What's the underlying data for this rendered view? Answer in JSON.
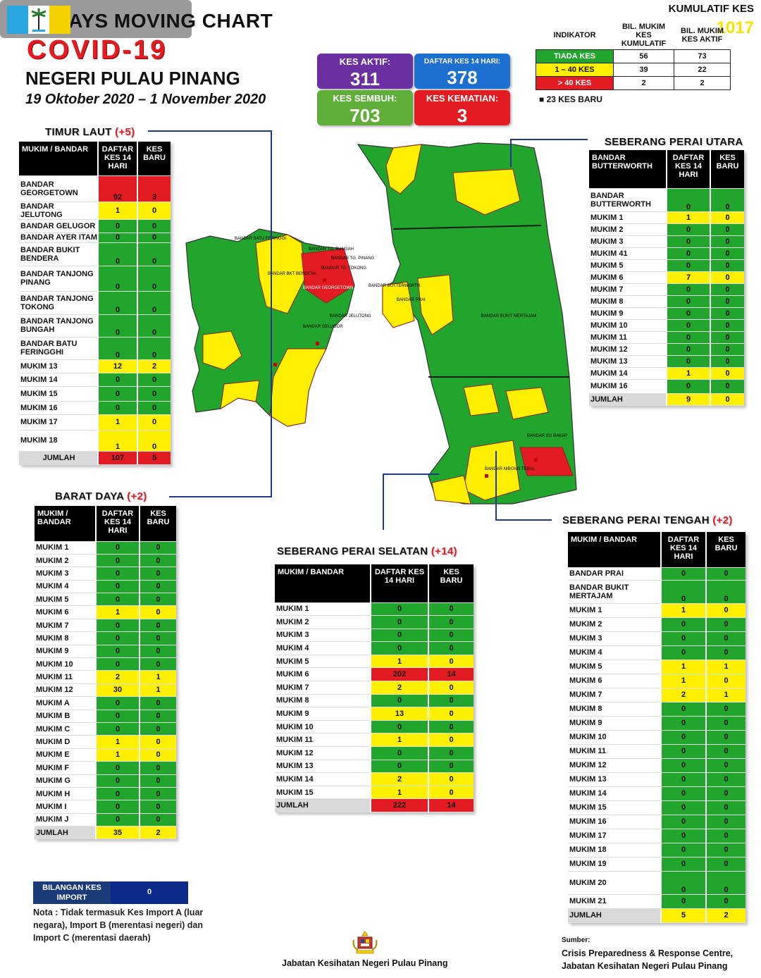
{
  "header": {
    "title_line1": "14  DAYS MOVING CHART",
    "title_line2": "COVID-19",
    "title_line3": "NEGERI PULAU PINANG",
    "date_range": "19 Oktober 2020 – 1 November 2020"
  },
  "stats": {
    "kumulatif_label": "KUMULATIF KES",
    "kumulatif_value": "1017",
    "aktif_label": "KES AKTIF:",
    "aktif_value": "311",
    "daftar_label": "DAFTAR KES 14 HARI:",
    "daftar_value": "378",
    "sembuh_label": "KES SEMBUH:",
    "sembuh_value": "703",
    "kematian_label": "KES KEMATIAN:",
    "kematian_value": "3"
  },
  "indikator": {
    "h_indikator": "INDIKATOR",
    "h_kumulatif": "BIL. MUKIM KES KUMULATIF",
    "h_aktif": "BIL. MUKIM KES AKTIF",
    "rows": [
      {
        "label": "TIADA KES",
        "kum": "56",
        "akt": "73",
        "color": "#22a52c"
      },
      {
        "label": "1 – 40 KES",
        "kum": "39",
        "akt": "22",
        "color": "#ffef00"
      },
      {
        "label": "> 40 KES",
        "kum": "2",
        "akt": "2",
        "color": "#e31b23"
      }
    ],
    "kes_baru": "■  23 KES BARU"
  },
  "timur_laut": {
    "title": "TIMUR LAUT",
    "plus": "(+5)",
    "h1": "MUKIM / BANDAR",
    "h2": "DAFTAR KES 14 HARI",
    "h3": "KES BARU",
    "rows": [
      {
        "n": "BANDAR GEORGETOWN",
        "a": "92",
        "b": "3",
        "c": "r",
        "h": 37
      },
      {
        "n": "BANDAR JELUTONG",
        "a": "1",
        "b": "0",
        "c": "y",
        "h": 19
      },
      {
        "n": "BANDAR GELUGOR",
        "a": "0",
        "b": "0",
        "c": "g",
        "h": 19
      },
      {
        "n": "BANDAR AYER ITAM",
        "a": "0",
        "b": "0",
        "c": "g",
        "h": 14
      },
      {
        "n": "BANDAR BUKIT BENDERA",
        "a": "0",
        "b": "0",
        "c": "g",
        "h": 33
      },
      {
        "n": "BANDAR TANJONG PINANG",
        "a": "0",
        "b": "0",
        "c": "g",
        "h": 36
      },
      {
        "n": "BANDAR TANJONG TOKONG",
        "a": "0",
        "b": "0",
        "c": "g",
        "h": 33
      },
      {
        "n": "BANDAR TANJONG BUNGAH",
        "a": "0",
        "b": "0",
        "c": "g",
        "h": 32
      },
      {
        "n": "BANDAR BATU FERINGGHI",
        "a": "0",
        "b": "0",
        "c": "g",
        "h": 32
      },
      {
        "n": "MUKIM 13",
        "a": "12",
        "b": "2",
        "c": "y",
        "h": 19
      },
      {
        "n": "MUKIM 14",
        "a": "0",
        "b": "0",
        "c": "g",
        "h": 19
      },
      {
        "n": "MUKIM 15",
        "a": "0",
        "b": "0",
        "c": "g",
        "h": 21
      },
      {
        "n": "MUKIM 16",
        "a": "0",
        "b": "0",
        "c": "g",
        "h": 19
      },
      {
        "n": "MUKIM 17",
        "a": "1",
        "b": "0",
        "c": "y",
        "h": 22
      },
      {
        "n": "MUKIM 18",
        "a": "1",
        "b": "0",
        "c": "y",
        "h": 30
      }
    ],
    "total": {
      "n": "JUMLAH",
      "a": "107",
      "b": "5",
      "c": "r"
    }
  },
  "barat_daya": {
    "title": "BARAT DAYA",
    "plus": "(+2)",
    "h1": "MUKIM / BANDAR",
    "h2": "DAFTAR KES 14 HARI",
    "h3": "KES BARU",
    "rows": [
      {
        "n": "MUKIM 1",
        "a": "0",
        "b": "0",
        "c": "g"
      },
      {
        "n": "MUKIM 2",
        "a": "0",
        "b": "0",
        "c": "g"
      },
      {
        "n": "MUKIM 3",
        "a": "0",
        "b": "0",
        "c": "g"
      },
      {
        "n": "MUKIM 4",
        "a": "0",
        "b": "0",
        "c": "g"
      },
      {
        "n": "MUKIM 5",
        "a": "0",
        "b": "0",
        "c": "g"
      },
      {
        "n": "MUKIM 6",
        "a": "1",
        "b": "0",
        "c": "y"
      },
      {
        "n": "MUKIM 7",
        "a": "0",
        "b": "0",
        "c": "g"
      },
      {
        "n": "MUKIM 8",
        "a": "0",
        "b": "0",
        "c": "g"
      },
      {
        "n": "MUKIM 9",
        "a": "0",
        "b": "0",
        "c": "g"
      },
      {
        "n": "MUKIM 10",
        "a": "0",
        "b": "0",
        "c": "g"
      },
      {
        "n": "MUKIM 11",
        "a": "2",
        "b": "1",
        "c": "y"
      },
      {
        "n": "MUKIM 12",
        "a": "30",
        "b": "1",
        "c": "y"
      },
      {
        "n": "MUKIM A",
        "a": "0",
        "b": "0",
        "c": "g"
      },
      {
        "n": "MUKIM B",
        "a": "0",
        "b": "0",
        "c": "g"
      },
      {
        "n": "MUKIM C",
        "a": "0",
        "b": "0",
        "c": "g"
      },
      {
        "n": "MUKIM D",
        "a": "1",
        "b": "0",
        "c": "y"
      },
      {
        "n": "MUKIM E",
        "a": "1",
        "b": "0",
        "c": "y"
      },
      {
        "n": "MUKIM F",
        "a": "0",
        "b": "0",
        "c": "g"
      },
      {
        "n": "MUKIM G",
        "a": "0",
        "b": "0",
        "c": "g"
      },
      {
        "n": "MUKIM H",
        "a": "0",
        "b": "0",
        "c": "g"
      },
      {
        "n": "MUKIM I",
        "a": "0",
        "b": "0",
        "c": "g"
      },
      {
        "n": "MUKIM J",
        "a": "0",
        "b": "0",
        "c": "g"
      }
    ],
    "total": {
      "n": "JUMLAH",
      "a": "35",
      "b": "2",
      "c": "y"
    }
  },
  "spu": {
    "title": "SEBERANG PERAI UTARA",
    "h1": "BANDAR BUTTERWORTH",
    "h2": "DAFTAR KES 14 HARI",
    "h3": "KES BARU",
    "rows": [
      {
        "n": "BANDAR BUTTERWORTH",
        "a": "0",
        "b": "0",
        "c": "g",
        "h": 33
      },
      {
        "n": "MUKIM 1",
        "a": "1",
        "b": "0",
        "c": "y",
        "h": 17
      },
      {
        "n": "MUKIM 2",
        "a": "0",
        "b": "0",
        "c": "g",
        "h": 17
      },
      {
        "n": "MUKIM 3",
        "a": "0",
        "b": "0",
        "c": "g",
        "h": 17
      },
      {
        "n": "MUKIM 41",
        "a": "0",
        "b": "0",
        "c": "g",
        "h": 17
      },
      {
        "n": "MUKIM 5",
        "a": "0",
        "b": "0",
        "c": "g",
        "h": 17
      },
      {
        "n": "MUKIM 6",
        "a": "7",
        "b": "0",
        "c": "y",
        "h": 17
      },
      {
        "n": "MUKIM 7",
        "a": "0",
        "b": "0",
        "c": "g",
        "h": 17
      },
      {
        "n": "MUKIM 8",
        "a": "0",
        "b": "0",
        "c": "g",
        "h": 17
      },
      {
        "n": "MUKIM 9",
        "a": "0",
        "b": "0",
        "c": "g",
        "h": 17
      },
      {
        "n": "MUKIM 10",
        "a": "0",
        "b": "0",
        "c": "g",
        "h": 17
      },
      {
        "n": "MUKIM 11",
        "a": "0",
        "b": "0",
        "c": "g",
        "h": 17
      },
      {
        "n": "MUKIM 12",
        "a": "0",
        "b": "0",
        "c": "g",
        "h": 17
      },
      {
        "n": "MUKIM 13",
        "a": "0",
        "b": "0",
        "c": "g",
        "h": 17
      },
      {
        "n": "MUKIM 14",
        "a": "1",
        "b": "0",
        "c": "y",
        "h": 17
      },
      {
        "n": "MUKIM 16",
        "a": "0",
        "b": "0",
        "c": "g",
        "h": 20
      }
    ],
    "total": {
      "n": "JUMLAH",
      "a": "9",
      "b": "0",
      "c": "y"
    }
  },
  "sps": {
    "title": "SEBERANG PERAI SELATAN",
    "plus": "(+14)",
    "h1": "MUKIM / BANDAR",
    "h2": "DAFTAR KES 14 HARI",
    "h3": "KES BARU",
    "rows": [
      {
        "n": "MUKIM 1",
        "a": "0",
        "b": "0",
        "c": "g"
      },
      {
        "n": "MUKIM 2",
        "a": "0",
        "b": "0",
        "c": "g"
      },
      {
        "n": "MUKIM 3",
        "a": "0",
        "b": "0",
        "c": "g"
      },
      {
        "n": "MUKIM 4",
        "a": "0",
        "b": "0",
        "c": "g"
      },
      {
        "n": "MUKIM 5",
        "a": "1",
        "b": "0",
        "c": "y"
      },
      {
        "n": "MUKIM 6",
        "a": "202",
        "b": "14",
        "c": "r"
      },
      {
        "n": "MUKIM 7",
        "a": "2",
        "b": "0",
        "c": "y"
      },
      {
        "n": "MUKIM 8",
        "a": "0",
        "b": "0",
        "c": "g"
      },
      {
        "n": "MUKIM 9",
        "a": "13",
        "b": "0",
        "c": "y"
      },
      {
        "n": "MUKIM 10",
        "a": "0",
        "b": "0",
        "c": "g"
      },
      {
        "n": "MUKIM 11",
        "a": "1",
        "b": "0",
        "c": "y"
      },
      {
        "n": "MUKIM 12",
        "a": "0",
        "b": "0",
        "c": "g"
      },
      {
        "n": "MUKIM 13",
        "a": "0",
        "b": "0",
        "c": "g"
      },
      {
        "n": "MUKIM 14",
        "a": "2",
        "b": "0",
        "c": "y"
      },
      {
        "n": "MUKIM 15",
        "a": "1",
        "b": "0",
        "c": "y"
      }
    ],
    "total": {
      "n": "JUMLAH",
      "a": "222",
      "b": "14",
      "c": "r"
    }
  },
  "spt": {
    "title": "SEBERANG PERAI TENGAH",
    "plus": "(+2)",
    "h1": "MUKIM / BANDAR",
    "h2": "DAFTAR KES 14 HARI",
    "h3": "KES BARU",
    "rows": [
      {
        "n": "BANDAR PRAI",
        "a": "0",
        "b": "0",
        "c": "g",
        "h": 18
      },
      {
        "n": "BANDAR BUKIT MERTAJAM",
        "a": "0",
        "b": "0",
        "c": "g",
        "h": 33
      },
      {
        "n": "MUKIM 1",
        "a": "1",
        "b": "0",
        "c": "y",
        "h": 20
      },
      {
        "n": "MUKIM 2",
        "a": "0",
        "b": "0",
        "c": "g",
        "h": 20
      },
      {
        "n": "MUKIM 3",
        "a": "0",
        "b": "0",
        "c": "g",
        "h": 20
      },
      {
        "n": "MUKIM 4",
        "a": "0",
        "b": "0",
        "c": "g",
        "h": 20
      },
      {
        "n": "MUKIM 5",
        "a": "1",
        "b": "1",
        "c": "y",
        "h": 20
      },
      {
        "n": "MUKIM 6",
        "a": "1",
        "b": "0",
        "c": "y",
        "h": 20
      },
      {
        "n": "MUKIM 7",
        "a": "2",
        "b": "1",
        "c": "y",
        "h": 20
      },
      {
        "n": "MUKIM 8",
        "a": "0",
        "b": "0",
        "c": "g",
        "h": 20
      },
      {
        "n": "MUKIM 9",
        "a": "0",
        "b": "0",
        "c": "g",
        "h": 20
      },
      {
        "n": "MUKIM 10",
        "a": "0",
        "b": "0",
        "c": "g",
        "h": 20
      },
      {
        "n": "MUKIM 11",
        "a": "0",
        "b": "0",
        "c": "g",
        "h": 20
      },
      {
        "n": "MUKIM 12",
        "a": "0",
        "b": "0",
        "c": "g",
        "h": 20
      },
      {
        "n": "MUKIM 13",
        "a": "0",
        "b": "0",
        "c": "g",
        "h": 20
      },
      {
        "n": "MUKIM 14",
        "a": "0",
        "b": "0",
        "c": "g",
        "h": 20
      },
      {
        "n": "MUKIM 15",
        "a": "0",
        "b": "0",
        "c": "g",
        "h": 20
      },
      {
        "n": "MUKIM 16",
        "a": "0",
        "b": "0",
        "c": "g",
        "h": 20
      },
      {
        "n": "MUKIM 17",
        "a": "0",
        "b": "0",
        "c": "g",
        "h": 20
      },
      {
        "n": "MUKIM 18",
        "a": "0",
        "b": "0",
        "c": "g",
        "h": 20
      },
      {
        "n": "MUKIM 19",
        "a": "0",
        "b": "0",
        "c": "g",
        "h": 20
      },
      {
        "n": "MUKIM 20",
        "a": "0",
        "b": "0",
        "c": "g",
        "h": 33
      },
      {
        "n": "MUKIM 21",
        "a": "0",
        "b": "0",
        "c": "g",
        "h": 20
      }
    ],
    "total": {
      "n": "JUMLAH",
      "a": "5",
      "b": "2",
      "c": "y"
    }
  },
  "import": {
    "label": "BILANGAN KES IMPORT",
    "value": "0",
    "note": "Nota : Tidak termasuk Kes Import A (luar negara), Import B (merentasi negeri) dan Import C (merentasi daerah)"
  },
  "footer": {
    "center": "Jabatan Kesihatan Negeri Pulau Pinang",
    "sumber_label": "Sumber:",
    "sumber_line1": "Crisis Preparedness & Response Centre,",
    "sumber_line2": "Jabatan Kesihatan Negeri Pulau Pinang"
  },
  "map_labels": {
    "batu_feringgi": "BANDAR BATU FERINGGI",
    "tg_bungah": "BANDAR TG. BUNGAH",
    "tg_pinang": "BANDAR TG. PINANG",
    "tg_tokong": "BANDAR TG. TOKONG",
    "georgetown": "BANDAR GEORGETOWN",
    "jelutong": "BANDAR JELUTONG",
    "gelugor": "BANDAR GELUGOR",
    "bukit_bendera": "BANDAR BKT BENDERA",
    "butterworth": "BANDAR BUTTERWORTH",
    "prai": "BANDAR PRAI",
    "bukit_mertajam": "BANDAR BUKIT MERTAJAM",
    "sg_bakap": "BANDAR SG BAKAP",
    "nibong_tebal": "BANDAR NIBONG TEBAL"
  },
  "colors": {
    "green": "#22a52c",
    "yellow": "#ffef00",
    "red": "#e31b23",
    "purple": "#6a2fa0",
    "blue": "#1d6fd0",
    "navy": "#1f3a8c"
  }
}
